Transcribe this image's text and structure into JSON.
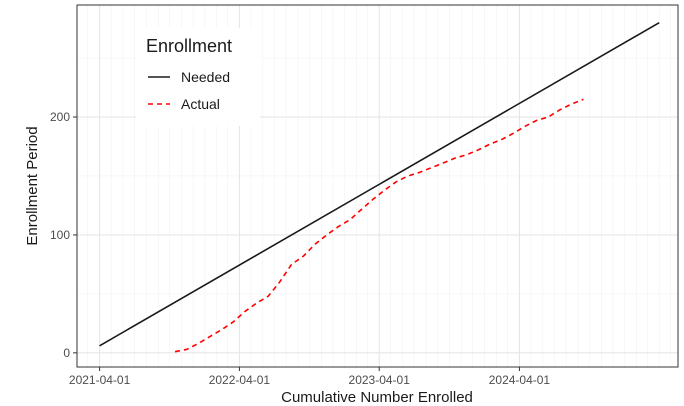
{
  "chart_data": {
    "type": "line",
    "xlabel": "Cumulative Number Enrolled",
    "ylabel": "Enrollment Period",
    "x_tick_labels": [
      "2021-04-01",
      "2022-04-01",
      "2023-04-01",
      "2024-04-01"
    ],
    "y_tick_labels": [
      "0",
      "100",
      "200"
    ],
    "xlim": [
      "2021-02-01",
      "2025-05-20"
    ],
    "ylim": [
      -12,
      295
    ],
    "grid": true,
    "legend": {
      "title": "Enrollment",
      "position": "top-left",
      "entries": [
        "Needed",
        "Actual"
      ]
    },
    "series": [
      {
        "name": "Needed",
        "color": "#1a1a1a",
        "style": "solid",
        "points": [
          {
            "x": "2021-04-01",
            "y": 6
          },
          {
            "x": "2025-04-01",
            "y": 280
          }
        ]
      },
      {
        "name": "Actual",
        "color": "#ff0000",
        "style": "dashed",
        "points": [
          {
            "x": "2021-10-15",
            "y": 1
          },
          {
            "x": "2021-11-15",
            "y": 3
          },
          {
            "x": "2021-12-15",
            "y": 8
          },
          {
            "x": "2022-01-15",
            "y": 14
          },
          {
            "x": "2022-02-15",
            "y": 20
          },
          {
            "x": "2022-03-15",
            "y": 26
          },
          {
            "x": "2022-04-15",
            "y": 35
          },
          {
            "x": "2022-05-15",
            "y": 42
          },
          {
            "x": "2022-06-15",
            "y": 48
          },
          {
            "x": "2022-07-15",
            "y": 60
          },
          {
            "x": "2022-08-15",
            "y": 75
          },
          {
            "x": "2022-09-15",
            "y": 82
          },
          {
            "x": "2022-10-15",
            "y": 92
          },
          {
            "x": "2022-11-15",
            "y": 100
          },
          {
            "x": "2022-12-15",
            "y": 107
          },
          {
            "x": "2023-01-15",
            "y": 113
          },
          {
            "x": "2023-02-15",
            "y": 122
          },
          {
            "x": "2023-03-15",
            "y": 130
          },
          {
            "x": "2023-04-15",
            "y": 138
          },
          {
            "x": "2023-05-15",
            "y": 145
          },
          {
            "x": "2023-06-15",
            "y": 150
          },
          {
            "x": "2023-07-15",
            "y": 153
          },
          {
            "x": "2023-08-15",
            "y": 157
          },
          {
            "x": "2023-09-15",
            "y": 161
          },
          {
            "x": "2023-10-15",
            "y": 165
          },
          {
            "x": "2023-11-15",
            "y": 168
          },
          {
            "x": "2023-12-15",
            "y": 172
          },
          {
            "x": "2024-01-15",
            "y": 177
          },
          {
            "x": "2024-02-15",
            "y": 181
          },
          {
            "x": "2024-03-15",
            "y": 186
          },
          {
            "x": "2024-04-15",
            "y": 192
          },
          {
            "x": "2024-05-15",
            "y": 197
          },
          {
            "x": "2024-06-15",
            "y": 200
          },
          {
            "x": "2024-07-15",
            "y": 206
          },
          {
            "x": "2024-08-15",
            "y": 211
          },
          {
            "x": "2024-09-15",
            "y": 215
          }
        ]
      }
    ]
  }
}
